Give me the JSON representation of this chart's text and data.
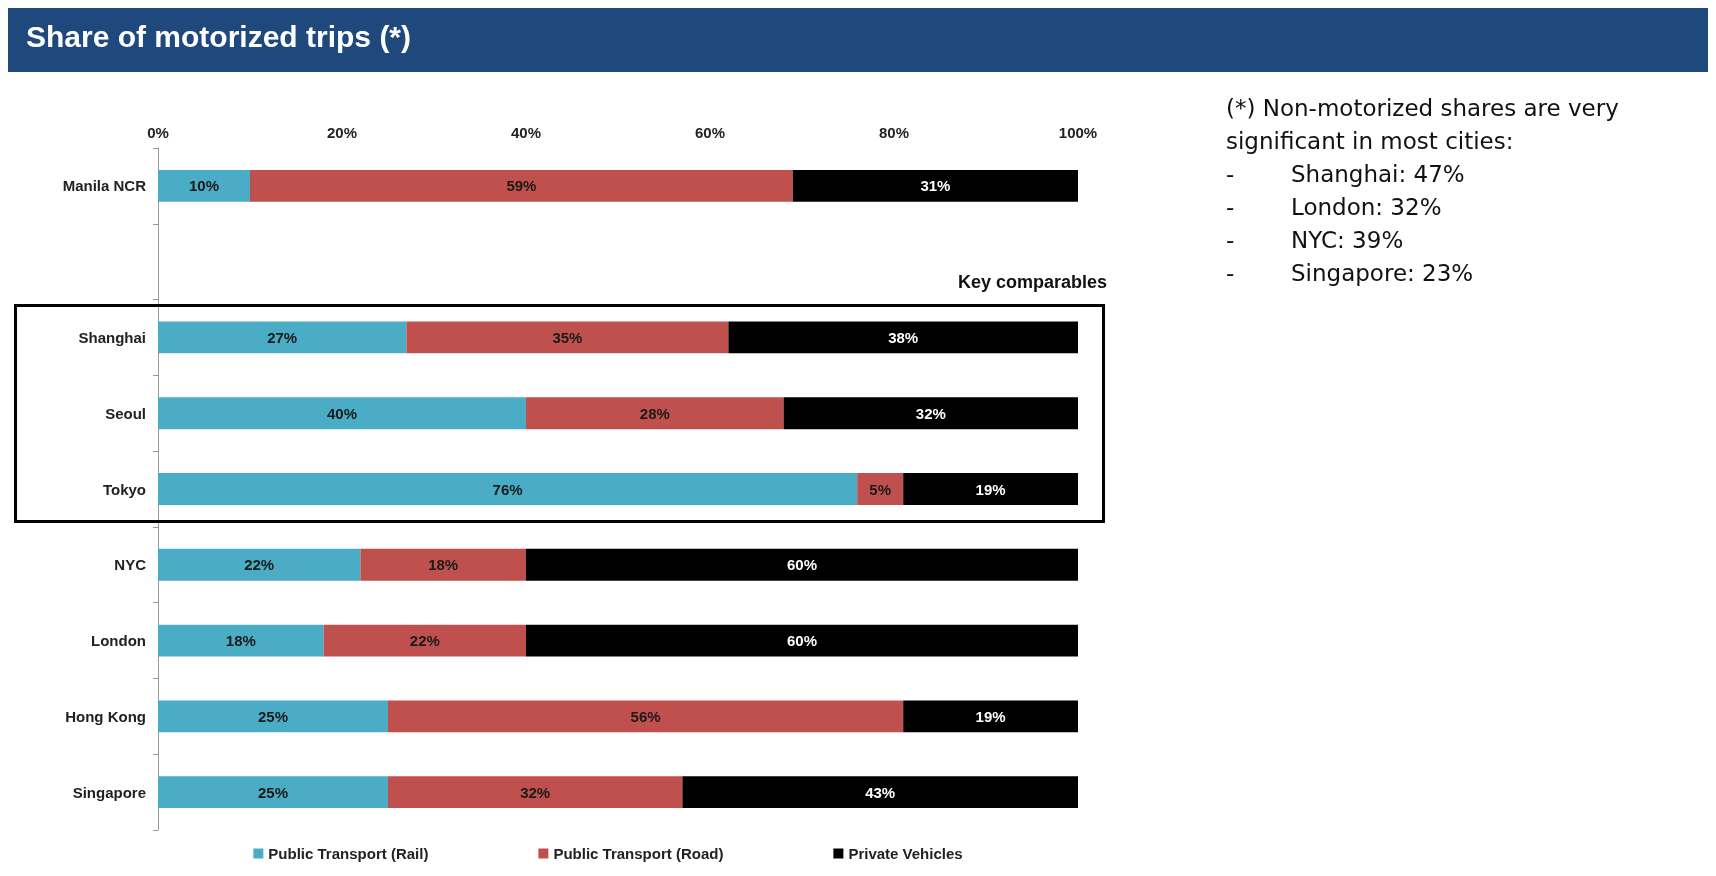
{
  "chart_data": {
    "type": "bar",
    "orientation": "horizontal",
    "stacked": true,
    "title": "Share of motorized trips (*)",
    "categories": [
      "Manila NCR",
      null,
      "Shanghai",
      "Seoul",
      "Tokyo",
      "NYC",
      "London",
      "Hong Kong",
      "Singapore"
    ],
    "series": [
      {
        "name": "Public Transport (Rail)",
        "color": "#4bacc6",
        "values": [
          10,
          null,
          27,
          40,
          76,
          22,
          18,
          25,
          25
        ],
        "value_labels": [
          "10%",
          null,
          "27%",
          "40%",
          "76%",
          "22%",
          "18%",
          "25%",
          "25%"
        ]
      },
      {
        "name": "Public Transport (Road)",
        "color": "#c0504d",
        "values": [
          59,
          null,
          35,
          28,
          5,
          18,
          22,
          56,
          32
        ],
        "value_labels": [
          "59%",
          null,
          "35%",
          "28%",
          "5%",
          "18%",
          "22%",
          "56%",
          "32%"
        ]
      },
      {
        "name": "Private Vehicles",
        "color": "#000000",
        "values": [
          31,
          null,
          38,
          32,
          19,
          60,
          60,
          19,
          43
        ],
        "value_labels": [
          "31%",
          null,
          "38%",
          "32%",
          "19%",
          "60%",
          "60%",
          "19%",
          "43%"
        ]
      }
    ],
    "xlim": [
      0,
      100
    ],
    "xticks": [
      {
        "value": 0,
        "label": "0%"
      },
      {
        "value": 20,
        "label": "20%"
      },
      {
        "value": 40,
        "label": "40%"
      },
      {
        "value": 60,
        "label": "60%"
      },
      {
        "value": 80,
        "label": "80%"
      },
      {
        "value": 100,
        "label": "100%"
      }
    ],
    "grid": false,
    "legend": "bottom",
    "annotations": [
      "Key comparables",
      "(*) Non-motorized shares are very significant in most cities:",
      "-\tShanghai: 47%",
      "-\tLondon: 32%",
      "-\tNYC: 39%",
      "-\tSingapore: 23%"
    ]
  }
}
